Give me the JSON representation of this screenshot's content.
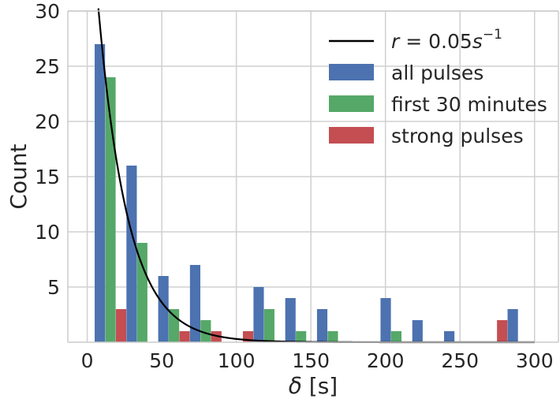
{
  "chart_data": {
    "type": "bar",
    "xlabel": "δ [s]",
    "xlabel_parts": {
      "symbol": "δ",
      "unit": " [s]"
    },
    "ylabel": "Count",
    "xlim": [
      -13,
      316
    ],
    "ylim": [
      0,
      30
    ],
    "xticks": [
      0,
      50,
      100,
      150,
      200,
      250,
      300
    ],
    "yticks": [
      5,
      10,
      15,
      20,
      25,
      30
    ],
    "grid": true,
    "legend_position": "top-right",
    "bin_width": 21.3,
    "bin_starts": [
      5,
      26.3,
      47.6,
      68.9,
      90.2,
      111.5,
      132.8,
      154.1,
      175.4,
      196.7,
      218,
      239.3,
      260.6,
      281.9
    ],
    "series": [
      {
        "name": "all pulses",
        "color": "#4c72b0",
        "values": [
          27,
          16,
          6,
          7,
          0,
          5,
          4,
          3,
          0,
          4,
          2,
          1,
          0,
          3
        ]
      },
      {
        "name": "first 30 minutes",
        "color": "#55a868",
        "values": [
          24,
          9,
          3,
          2,
          0,
          3,
          1,
          1,
          0,
          1,
          0,
          0,
          0,
          0
        ]
      },
      {
        "name": "strong pulses",
        "color": "#c44e52",
        "values": [
          3,
          0,
          1,
          1,
          1,
          0,
          0,
          0,
          0,
          0,
          0,
          0,
          2,
          0
        ]
      }
    ],
    "fit_line": {
      "name": "r = 0.05s⁻¹",
      "label_parts": {
        "lhs": "r",
        "eq": " = 0.05",
        "unit": "s",
        "exp": "−1"
      },
      "color": "#000000",
      "model": "exponential",
      "rate": 0.05,
      "amplitude": 44
    }
  }
}
